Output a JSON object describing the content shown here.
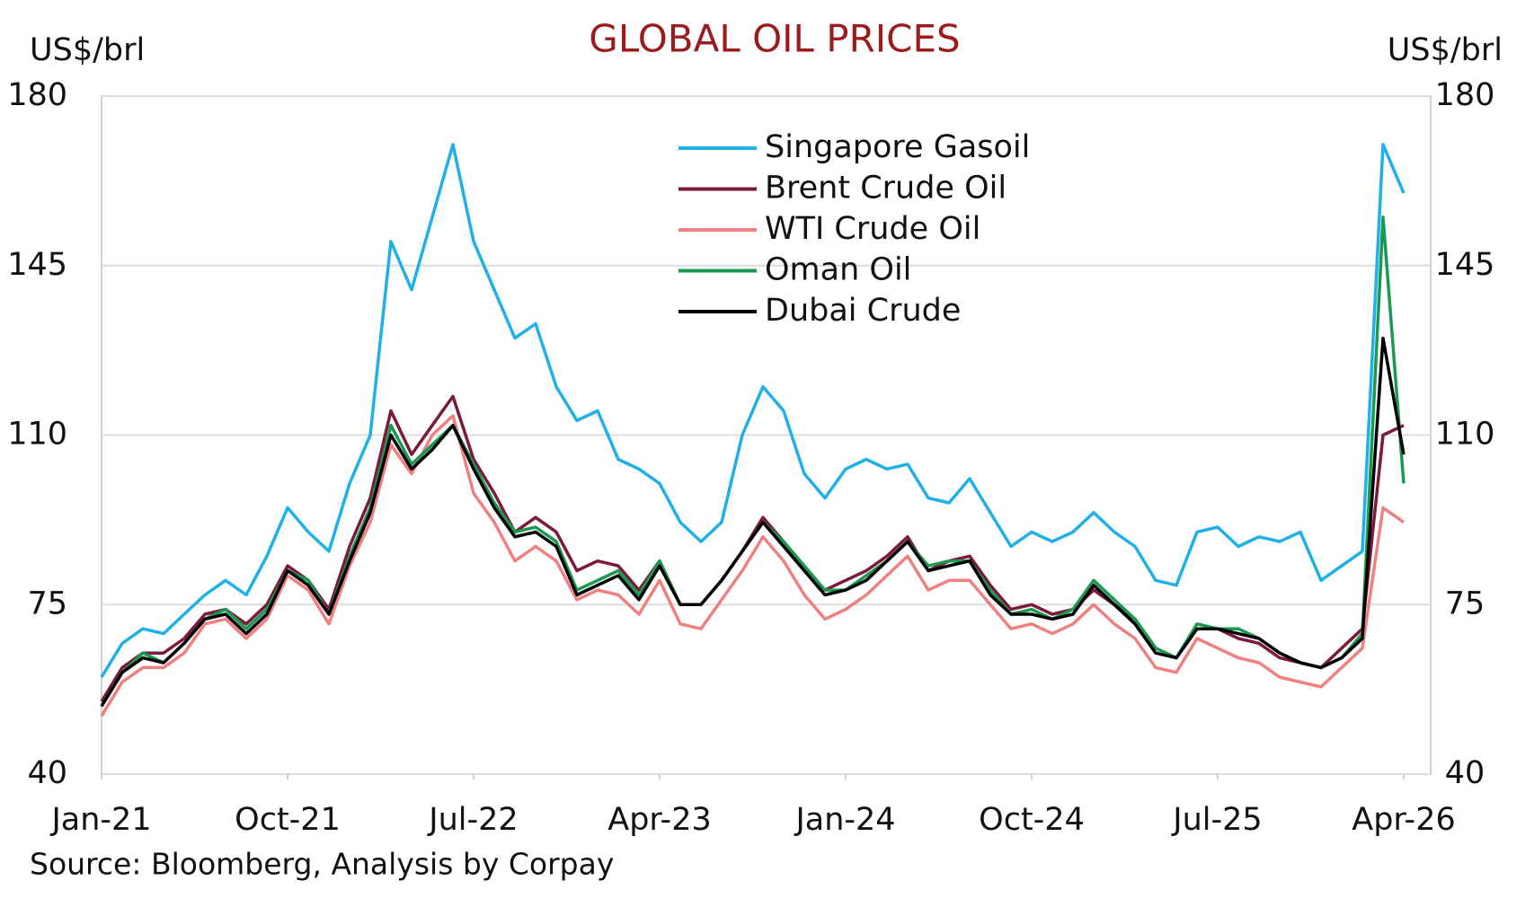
{
  "chart_data": {
    "type": "line",
    "title": "GLOBAL OIL PRICES",
    "y_label": "US$/brl",
    "y2_label": "US$/brl",
    "source": "Source: Bloomberg, Analysis by Corpay",
    "x": [
      "2021-01",
      "2021-02",
      "2021-03",
      "2021-04",
      "2021-05",
      "2021-06",
      "2021-07",
      "2021-08",
      "2021-09",
      "2021-10",
      "2021-11",
      "2021-12",
      "2022-01",
      "2022-02",
      "2022-03",
      "2022-04",
      "2022-05",
      "2022-06",
      "2022-07",
      "2022-08",
      "2022-09",
      "2022-10",
      "2022-11",
      "2022-12",
      "2023-01",
      "2023-02",
      "2023-03",
      "2023-04",
      "2023-05",
      "2023-06",
      "2023-07",
      "2023-08",
      "2023-09",
      "2023-10",
      "2023-11",
      "2023-12",
      "2024-01",
      "2024-02",
      "2024-03",
      "2024-04",
      "2024-05",
      "2024-06",
      "2024-07",
      "2024-08",
      "2024-09",
      "2024-10",
      "2024-11",
      "2024-12",
      "2025-01",
      "2025-02",
      "2025-03",
      "2025-04",
      "2025-05",
      "2025-06",
      "2025-07",
      "2025-08",
      "2025-09",
      "2025-10",
      "2025-11",
      "2025-12",
      "2026-01",
      "2026-02",
      "2026-03",
      "2026-04"
    ],
    "xticks": [
      {
        "value": "2021-01",
        "label": "Jan-21"
      },
      {
        "value": "2021-10",
        "label": "Oct-21"
      },
      {
        "value": "2022-07",
        "label": "Jul-22"
      },
      {
        "value": "2023-04",
        "label": "Apr-23"
      },
      {
        "value": "2024-01",
        "label": "Jan-24"
      },
      {
        "value": "2024-10",
        "label": "Oct-24"
      },
      {
        "value": "2025-07",
        "label": "Jul-25"
      },
      {
        "value": "2026-04",
        "label": "Apr-26"
      }
    ],
    "ylim": [
      40,
      180
    ],
    "yticks": [
      40,
      75,
      110,
      145,
      180
    ],
    "y2lim": [
      40,
      180
    ],
    "y2ticks": [
      40,
      75,
      110,
      145,
      180
    ],
    "grid": true,
    "series": [
      {
        "name": "Singapore Gasoil",
        "color": "#1fb0ea",
        "values": [
          60,
          67,
          70,
          69,
          73,
          77,
          80,
          77,
          85,
          95,
          90,
          86,
          100,
          110,
          150,
          140,
          155,
          170,
          150,
          140,
          130,
          133,
          120,
          113,
          115,
          105,
          103,
          100,
          92,
          88,
          92,
          110,
          120,
          115,
          102,
          97,
          103,
          105,
          103,
          104,
          97,
          96,
          101,
          94,
          87,
          90,
          88,
          90,
          94,
          90,
          87,
          80,
          79,
          90,
          91,
          87,
          89,
          88,
          90,
          80,
          83,
          86,
          170,
          160
        ]
      },
      {
        "name": "Brent Crude Oil",
        "color": "#7b1a3a",
        "values": [
          55,
          62,
          65,
          65,
          68,
          73,
          74,
          71,
          75,
          83,
          80,
          74,
          87,
          97,
          115,
          106,
          112,
          118,
          105,
          98,
          90,
          93,
          90,
          82,
          84,
          83,
          78,
          84,
          75,
          75,
          80,
          86,
          93,
          88,
          82,
          78,
          80,
          82,
          85,
          89,
          82,
          84,
          85,
          79,
          74,
          75,
          73,
          74,
          78,
          75,
          72,
          66,
          64,
          70,
          70,
          68,
          67,
          64,
          63,
          62,
          66,
          70,
          110,
          112
        ]
      },
      {
        "name": "WTI Crude Oil",
        "color": "#f08080",
        "values": [
          52,
          59,
          62,
          62,
          65,
          71,
          72,
          68,
          72,
          81,
          78,
          71,
          83,
          92,
          108,
          102,
          110,
          114,
          98,
          92,
          84,
          87,
          84,
          76,
          78,
          77,
          73,
          80,
          71,
          70,
          76,
          82,
          89,
          84,
          77,
          72,
          74,
          77,
          81,
          85,
          78,
          80,
          80,
          75,
          70,
          71,
          69,
          71,
          75,
          71,
          68,
          62,
          61,
          68,
          66,
          64,
          63,
          60,
          59,
          58,
          62,
          66,
          95,
          92
        ]
      },
      {
        "name": "Oman Oil",
        "color": "#1a9a50",
        "values": [
          54,
          61,
          65,
          63,
          67,
          72,
          74,
          70,
          74,
          82,
          80,
          73,
          85,
          95,
          112,
          104,
          108,
          112,
          104,
          96,
          90,
          91,
          88,
          78,
          80,
          82,
          77,
          84,
          75,
          75,
          80,
          86,
          92,
          88,
          83,
          78,
          78,
          81,
          84,
          88,
          83,
          84,
          84,
          78,
          73,
          74,
          72,
          74,
          80,
          76,
          72,
          66,
          64,
          71,
          70,
          70,
          68,
          65,
          63,
          62,
          64,
          69,
          155,
          100
        ]
      },
      {
        "name": "Dubai Crude",
        "color": "#000000",
        "values": [
          54,
          61,
          64,
          63,
          67,
          72,
          73,
          69,
          73,
          82,
          79,
          73,
          84,
          94,
          110,
          103,
          107,
          112,
          103,
          95,
          89,
          90,
          87,
          77,
          79,
          81,
          76,
          83,
          75,
          75,
          80,
          86,
          92,
          87,
          82,
          77,
          78,
          80,
          84,
          88,
          82,
          83,
          84,
          77,
          73,
          73,
          72,
          73,
          79,
          75,
          71,
          65,
          64,
          70,
          70,
          69,
          68,
          65,
          63,
          62,
          64,
          68,
          130,
          106
        ]
      }
    ]
  }
}
